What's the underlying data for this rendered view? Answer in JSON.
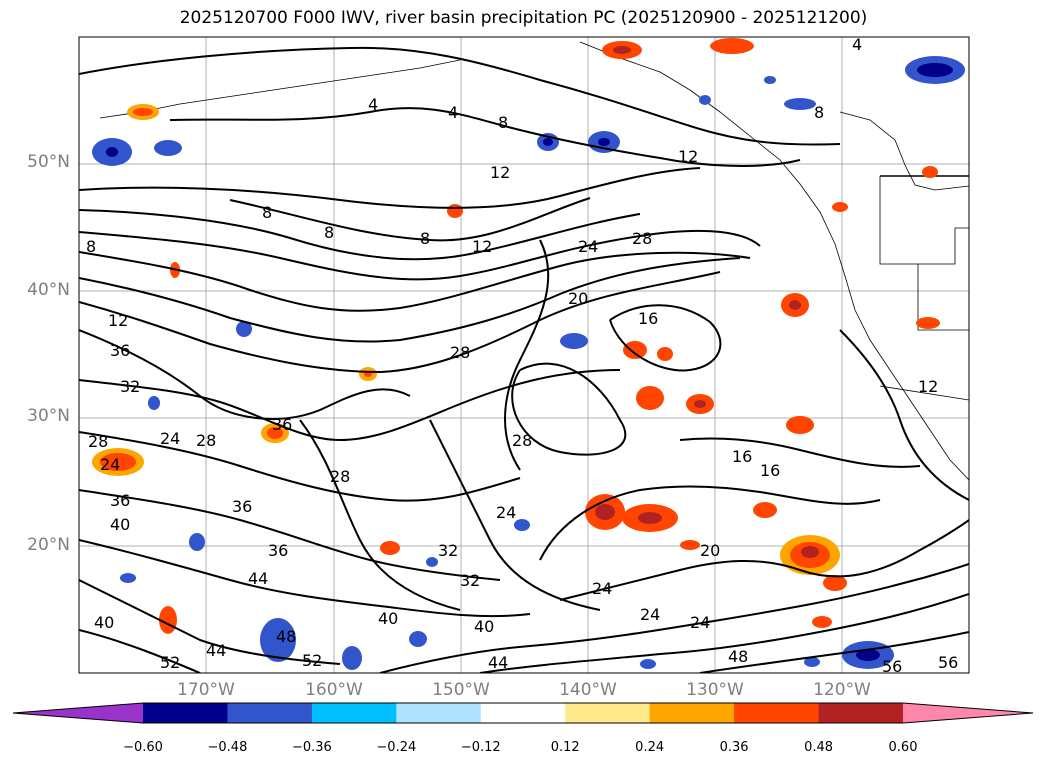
{
  "title": "2025120700 F000 IWV, river basin precipitation PC (2025120900 - 2025121200)",
  "lat_labels": [
    "50°N",
    "40°N",
    "30°N",
    "20°N"
  ],
  "lon_labels": [
    "170°W",
    "160°W",
    "150°W",
    "140°W",
    "130°W",
    "120°W"
  ],
  "colorbar": {
    "ticks": [
      "−0.60",
      "−0.48",
      "−0.36",
      "−0.24",
      "−0.12",
      "0.12",
      "0.24",
      "0.36",
      "0.48",
      "0.60"
    ],
    "colors": [
      "#9933cc",
      "#00008b",
      "#3355cc",
      "#00bfff",
      "#b0e2ff",
      "#ffffff",
      "#ffe98a",
      "#ffa500",
      "#ff4500",
      "#b22222",
      "#ff88aa"
    ]
  },
  "contour_labels": [
    "4",
    "4",
    "8",
    "12",
    "12",
    "12",
    "8",
    "8",
    "8",
    "8",
    "12",
    "24",
    "28",
    "20",
    "16",
    "12",
    "36",
    "32",
    "28",
    "36",
    "28",
    "28",
    "24",
    "28",
    "24",
    "28",
    "16",
    "16",
    "36",
    "40",
    "36",
    "36",
    "44",
    "40",
    "32",
    "32",
    "24",
    "24",
    "20",
    "24",
    "24",
    "40",
    "44",
    "40",
    "44",
    "48",
    "52",
    "52",
    "48",
    "56",
    "56",
    "4",
    "8"
  ]
}
